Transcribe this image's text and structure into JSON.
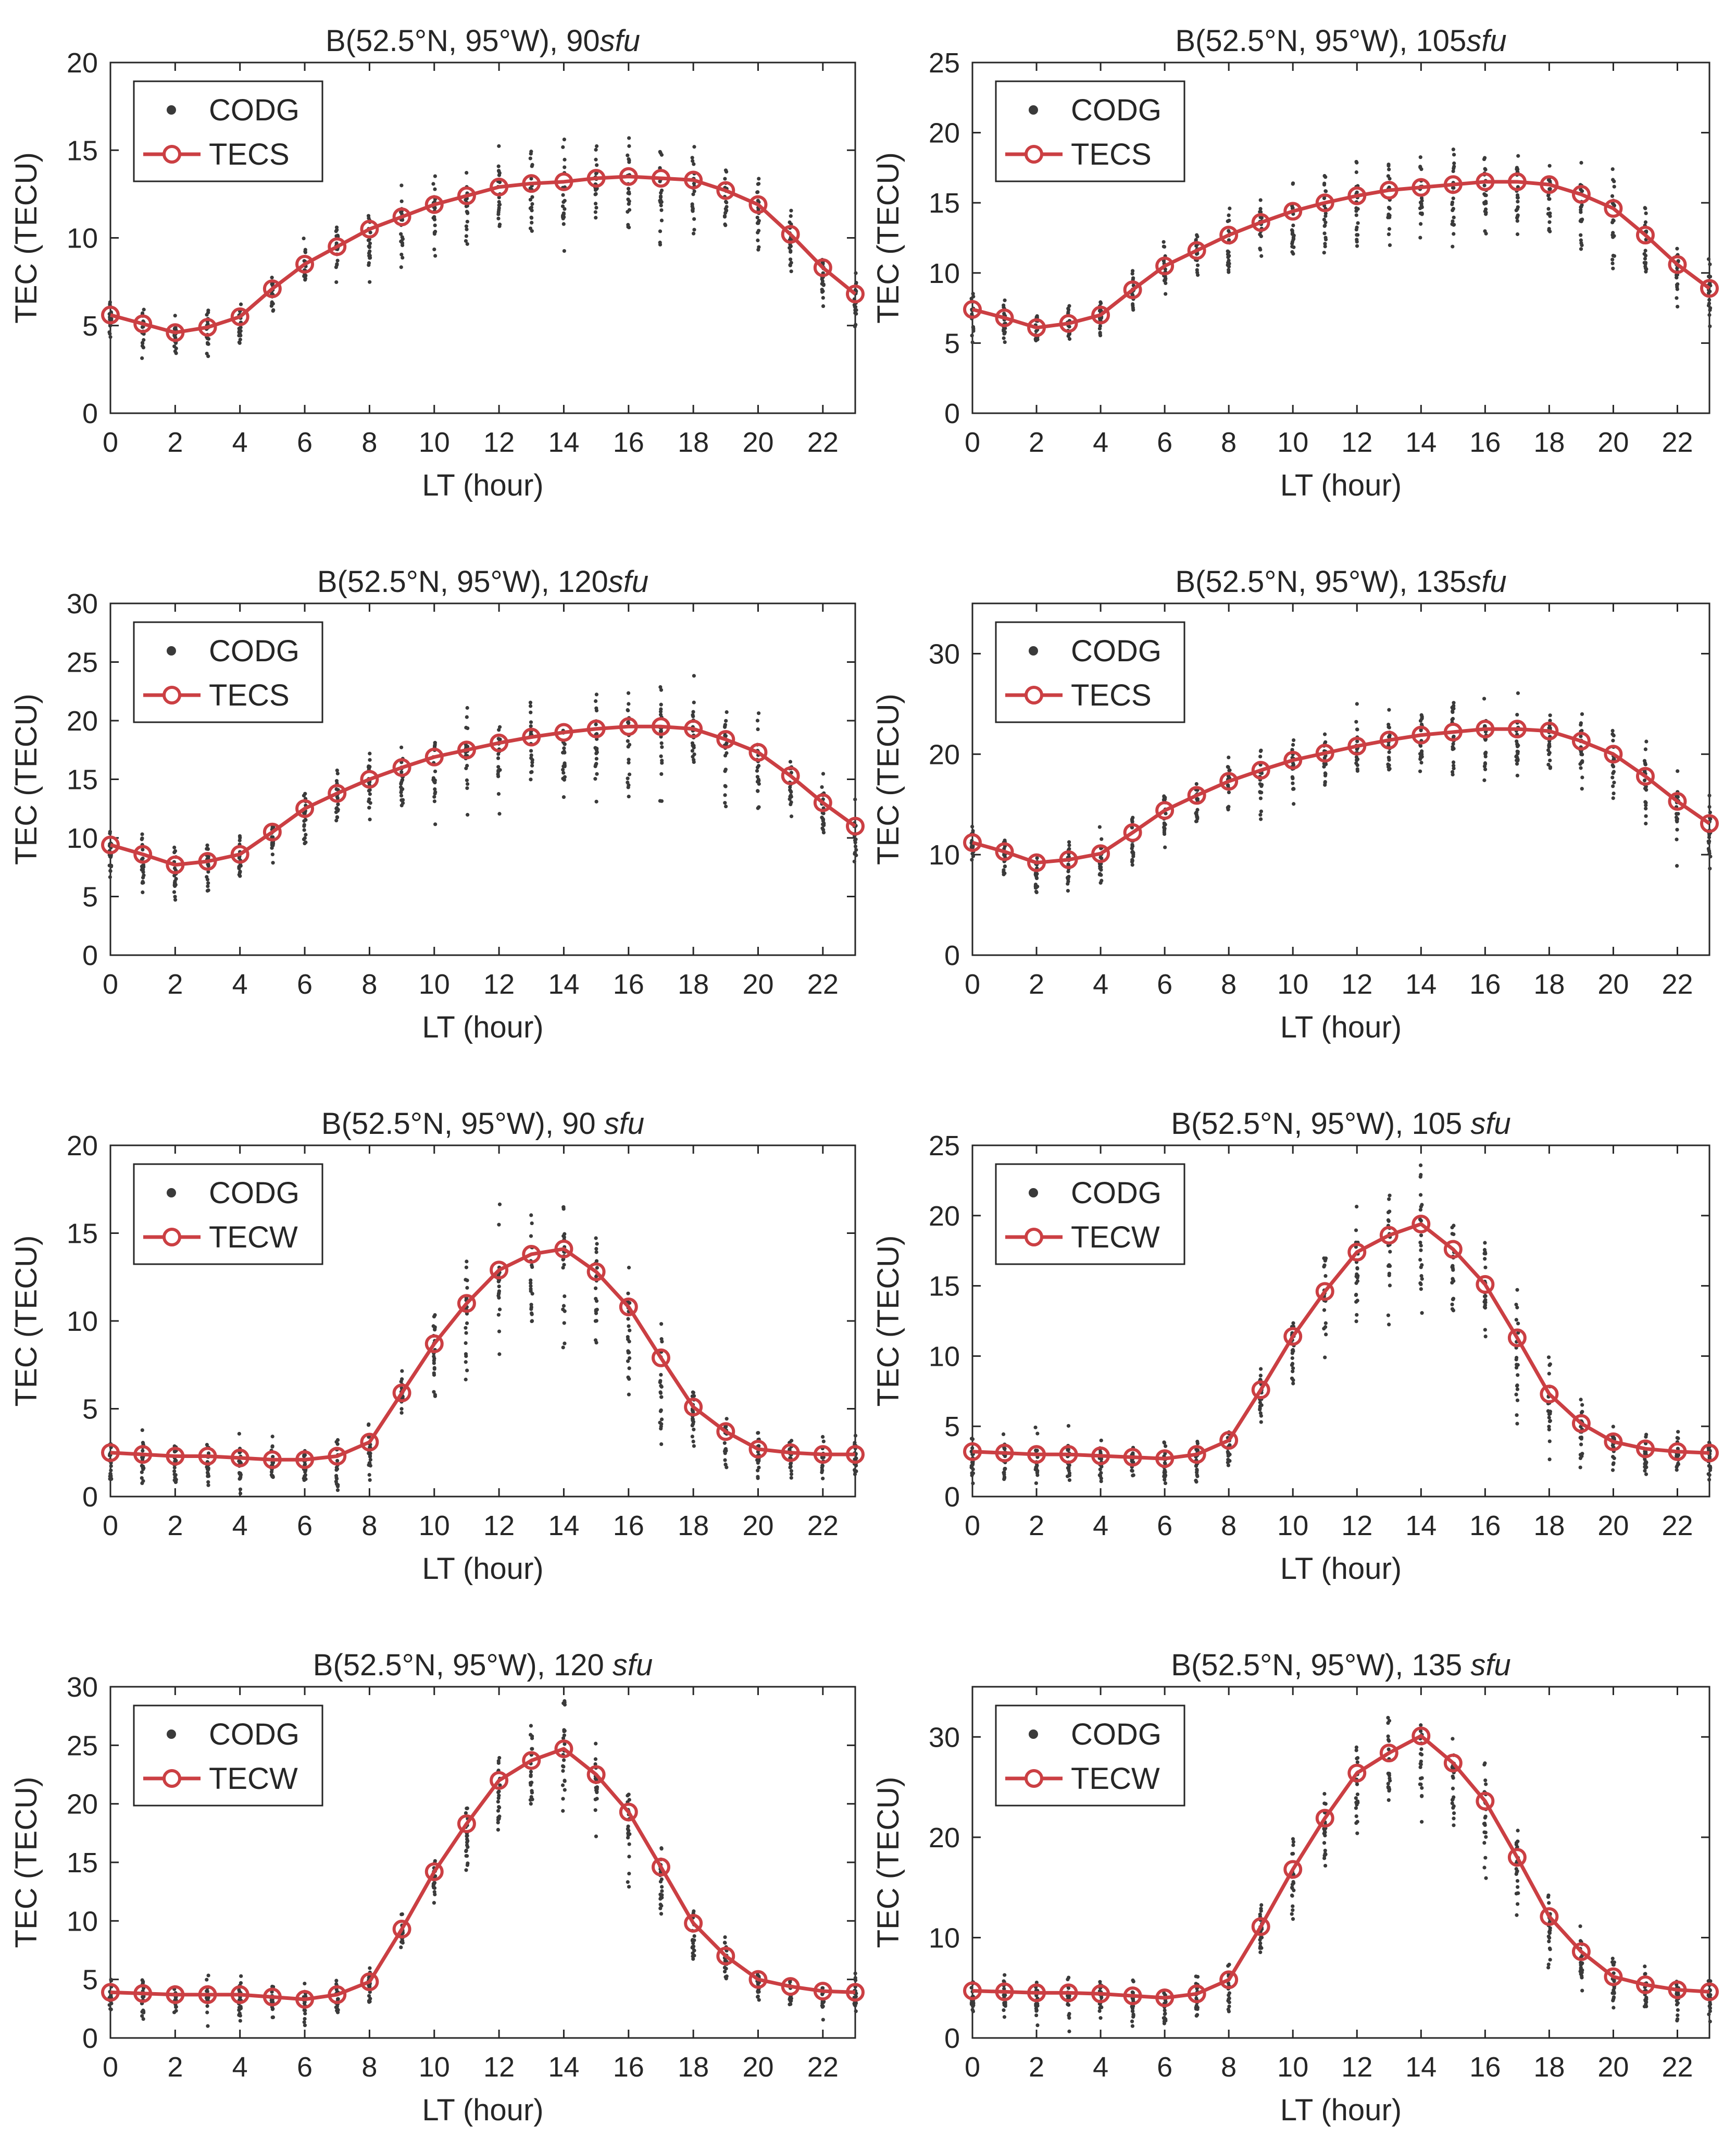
{
  "colors": {
    "model": "#cb3f43",
    "observed": "#3a3a3a",
    "axis": "#262626",
    "background": "#ffffff"
  },
  "chart_data": [
    {
      "type": "line",
      "title_prefix": "B(52.5°N, 95°W), ",
      "title_flux": "90",
      "title_unit": "sfu",
      "xlabel": "LT (hour)",
      "ylabel": "TEC (TECU)",
      "xlim": [
        0,
        23
      ],
      "ylim": [
        0,
        20
      ],
      "xticks": [
        "0",
        "2",
        "4",
        "6",
        "8",
        "10",
        "12",
        "14",
        "16",
        "18",
        "20",
        "22"
      ],
      "yticks": [
        "0",
        "5",
        "10",
        "15",
        "20"
      ],
      "legend": [
        "CODG",
        "TECS"
      ],
      "legend_position": "top-left",
      "grid": false,
      "x": [
        0,
        1,
        2,
        3,
        4,
        5,
        6,
        7,
        8,
        9,
        10,
        11,
        12,
        13,
        14,
        15,
        16,
        17,
        18,
        19,
        20,
        21,
        22,
        23
      ],
      "series": [
        {
          "name": "TECS",
          "values": [
            5.6,
            5.1,
            4.6,
            4.9,
            5.5,
            7.1,
            8.5,
            9.5,
            10.5,
            11.2,
            11.9,
            12.4,
            12.9,
            13.1,
            13.2,
            13.4,
            13.5,
            13.4,
            13.3,
            12.7,
            11.9,
            10.2,
            8.3,
            6.8
          ]
        },
        {
          "name": "CODG",
          "kind": "scatter",
          "spread": [
            1.4,
            1.4,
            1.3,
            1.3,
            1.3,
            1.0,
            1.3,
            1.5,
            1.9,
            2.0,
            2.1,
            2.1,
            2.2,
            2.4,
            2.6,
            2.7,
            2.9,
            2.9,
            2.4,
            2.4,
            2.2,
            1.8,
            1.7,
            1.6
          ]
        }
      ]
    },
    {
      "type": "line",
      "title_prefix": "B(52.5°N, 95°W), ",
      "title_flux": "105",
      "title_unit": "sfu",
      "xlabel": "LT (hour)",
      "ylabel": "TEC (TECU)",
      "xlim": [
        0,
        23
      ],
      "ylim": [
        0,
        25
      ],
      "xticks": [
        "0",
        "2",
        "4",
        "6",
        "8",
        "10",
        "12",
        "14",
        "16",
        "18",
        "20",
        "22"
      ],
      "yticks": [
        "0",
        "5",
        "10",
        "15",
        "20",
        "25"
      ],
      "legend": [
        "CODG",
        "TECS"
      ],
      "legend_position": "top-left",
      "grid": false,
      "x": [
        0,
        1,
        2,
        3,
        4,
        5,
        6,
        7,
        8,
        9,
        10,
        11,
        12,
        13,
        14,
        15,
        16,
        17,
        18,
        19,
        20,
        21,
        22,
        23
      ],
      "series": [
        {
          "name": "TECS",
          "values": [
            7.4,
            6.8,
            6.1,
            6.4,
            7.0,
            8.8,
            10.5,
            11.6,
            12.7,
            13.6,
            14.4,
            15.0,
            15.5,
            15.9,
            16.1,
            16.3,
            16.5,
            16.5,
            16.3,
            15.6,
            14.6,
            12.7,
            10.6,
            8.9
          ]
        },
        {
          "name": "CODG",
          "kind": "scatter",
          "spread": [
            1.6,
            1.5,
            1.5,
            1.5,
            1.5,
            1.5,
            1.7,
            2.0,
            2.4,
            2.6,
            2.8,
            2.9,
            3.1,
            3.3,
            3.3,
            3.3,
            3.2,
            3.2,
            2.9,
            3.0,
            2.9,
            2.6,
            2.5,
            2.1
          ]
        }
      ]
    },
    {
      "type": "line",
      "title_prefix": "B(52.5°N, 95°W), ",
      "title_flux": "120",
      "title_unit": "sfu",
      "xlabel": "LT (hour)",
      "ylabel": "TEC (TECU)",
      "xlim": [
        0,
        23
      ],
      "ylim": [
        0,
        30
      ],
      "xticks": [
        "0",
        "2",
        "4",
        "6",
        "8",
        "10",
        "12",
        "14",
        "16",
        "18",
        "20",
        "22"
      ],
      "yticks": [
        "0",
        "5",
        "10",
        "15",
        "20",
        "25",
        "30"
      ],
      "legend": [
        "CODG",
        "TECS"
      ],
      "legend_position": "top-left",
      "grid": false,
      "x": [
        0,
        1,
        2,
        3,
        4,
        5,
        6,
        7,
        8,
        9,
        10,
        11,
        12,
        13,
        14,
        15,
        16,
        17,
        18,
        19,
        20,
        21,
        22,
        23
      ],
      "series": [
        {
          "name": "TECS",
          "values": [
            9.4,
            8.6,
            7.7,
            8.0,
            8.6,
            10.5,
            12.5,
            13.8,
            15.0,
            16.0,
            16.9,
            17.5,
            18.1,
            18.6,
            19.0,
            19.3,
            19.5,
            19.5,
            19.3,
            18.4,
            17.3,
            15.3,
            13.0,
            11.0
          ]
        },
        {
          "name": "CODG",
          "kind": "scatter",
          "spread": [
            2.2,
            2.6,
            3.0,
            2.6,
            2.4,
            2.0,
            2.6,
            2.8,
            3.0,
            3.2,
            3.8,
            3.8,
            3.8,
            4.0,
            4.4,
            4.4,
            4.6,
            4.6,
            4.0,
            4.0,
            3.8,
            3.2,
            3.2,
            2.7
          ]
        }
      ]
    },
    {
      "type": "line",
      "title_prefix": "B(52.5°N, 95°W), ",
      "title_flux": "135",
      "title_unit": "sfu",
      "xlabel": "LT (hour)",
      "ylabel": "TEC (TECU)",
      "xlim": [
        0,
        23
      ],
      "ylim": [
        0,
        35
      ],
      "xticks": [
        "0",
        "2",
        "4",
        "6",
        "8",
        "10",
        "12",
        "14",
        "16",
        "18",
        "20",
        "22"
      ],
      "yticks": [
        "0",
        "10",
        "20",
        "30"
      ],
      "legend": [
        "CODG",
        "TECS"
      ],
      "legend_position": "top-left",
      "grid": false,
      "x": [
        0,
        1,
        2,
        3,
        4,
        5,
        6,
        7,
        8,
        9,
        10,
        11,
        12,
        13,
        14,
        15,
        16,
        17,
        18,
        19,
        20,
        21,
        22,
        23
      ],
      "series": [
        {
          "name": "TECS",
          "values": [
            11.2,
            10.3,
            9.2,
            9.5,
            10.1,
            12.2,
            14.4,
            15.9,
            17.3,
            18.4,
            19.4,
            20.1,
            20.8,
            21.4,
            21.9,
            22.2,
            22.5,
            22.5,
            22.3,
            21.3,
            20.0,
            17.8,
            15.3,
            13.1
          ]
        },
        {
          "name": "CODG",
          "kind": "scatter",
          "spread": [
            1.8,
            2.0,
            2.4,
            2.5,
            2.6,
            2.8,
            2.8,
            2.8,
            2.8,
            3.0,
            3.5,
            3.6,
            3.6,
            3.8,
            4.2,
            4.0,
            3.8,
            3.6,
            4.0,
            4.2,
            4.2,
            3.8,
            4.0,
            3.0
          ]
        }
      ]
    },
    {
      "type": "line",
      "title_prefix": "B(52.5°N, 95°W), ",
      "title_flux": "90 ",
      "title_unit": "sfu",
      "xlabel": "LT (hour)",
      "ylabel": "TEC (TECU)",
      "xlim": [
        0,
        23
      ],
      "ylim": [
        0,
        20
      ],
      "xticks": [
        "0",
        "2",
        "4",
        "6",
        "8",
        "10",
        "12",
        "14",
        "16",
        "18",
        "20",
        "22"
      ],
      "yticks": [
        "0",
        "5",
        "10",
        "15",
        "20"
      ],
      "legend": [
        "CODG",
        "TECW"
      ],
      "legend_position": "top-left",
      "grid": false,
      "x": [
        0,
        1,
        2,
        3,
        4,
        5,
        6,
        7,
        8,
        9,
        10,
        11,
        12,
        13,
        14,
        15,
        16,
        17,
        18,
        19,
        20,
        21,
        22,
        23
      ],
      "series": [
        {
          "name": "TECW",
          "values": [
            2.5,
            2.4,
            2.3,
            2.3,
            2.2,
            2.1,
            2.1,
            2.3,
            3.1,
            5.9,
            8.7,
            11.0,
            12.9,
            13.8,
            14.1,
            12.8,
            10.8,
            7.9,
            5.1,
            3.7,
            2.7,
            2.5,
            2.4,
            2.4
          ]
        },
        {
          "name": "CODG",
          "kind": "scatter",
          "spread": [
            1.3,
            1.4,
            1.5,
            1.5,
            1.5,
            1.4,
            1.5,
            1.6,
            1.4,
            1.6,
            2.8,
            3.4,
            3.8,
            4.4,
            4.8,
            4.6,
            4.4,
            3.6,
            2.2,
            1.6,
            1.4,
            1.3,
            1.3,
            1.2
          ]
        }
      ]
    },
    {
      "type": "line",
      "title_prefix": "B(52.5°N, 95°W), ",
      "title_flux": "105 ",
      "title_unit": "sfu",
      "xlabel": "LT (hour)",
      "ylabel": "TEC (TECU)",
      "xlim": [
        0,
        23
      ],
      "ylim": [
        0,
        25
      ],
      "xticks": [
        "0",
        "2",
        "4",
        "6",
        "8",
        "10",
        "12",
        "14",
        "16",
        "18",
        "20",
        "22"
      ],
      "yticks": [
        "0",
        "5",
        "10",
        "15",
        "20",
        "25"
      ],
      "legend": [
        "CODG",
        "TECW"
      ],
      "legend_position": "top-left",
      "grid": false,
      "x": [
        0,
        1,
        2,
        3,
        4,
        5,
        6,
        7,
        8,
        9,
        10,
        11,
        12,
        13,
        14,
        15,
        16,
        17,
        18,
        19,
        20,
        21,
        22,
        23
      ],
      "series": [
        {
          "name": "TECW",
          "values": [
            3.2,
            3.1,
            3.0,
            3.0,
            2.9,
            2.8,
            2.7,
            3.0,
            4.0,
            7.6,
            11.4,
            14.6,
            17.4,
            18.6,
            19.4,
            17.6,
            15.1,
            11.3,
            7.3,
            5.2,
            3.9,
            3.4,
            3.2,
            3.1
          ]
        },
        {
          "name": "CODG",
          "kind": "scatter",
          "spread": [
            1.6,
            1.7,
            1.8,
            1.8,
            1.7,
            1.6,
            1.6,
            1.7,
            1.6,
            1.8,
            3.2,
            4.0,
            4.6,
            5.0,
            5.2,
            5.0,
            5.0,
            4.4,
            3.0,
            2.0,
            1.7,
            1.6,
            1.6,
            1.5
          ]
        }
      ]
    },
    {
      "type": "line",
      "title_prefix": "B(52.5°N, 95°W), ",
      "title_flux": "120 ",
      "title_unit": "sfu",
      "xlabel": "LT (hour)",
      "ylabel": "TEC (TECU)",
      "xlim": [
        0,
        23
      ],
      "ylim": [
        0,
        30
      ],
      "xticks": [
        "0",
        "2",
        "4",
        "6",
        "8",
        "10",
        "12",
        "14",
        "16",
        "18",
        "20",
        "22"
      ],
      "yticks": [
        "0",
        "5",
        "10",
        "15",
        "20",
        "25",
        "30"
      ],
      "legend": [
        "CODG",
        "TECW"
      ],
      "legend_position": "top-left",
      "grid": false,
      "x": [
        0,
        1,
        2,
        3,
        4,
        5,
        6,
        7,
        8,
        9,
        10,
        11,
        12,
        13,
        14,
        15,
        16,
        17,
        18,
        19,
        20,
        21,
        22,
        23
      ],
      "series": [
        {
          "name": "TECW",
          "values": [
            3.9,
            3.8,
            3.7,
            3.7,
            3.7,
            3.5,
            3.3,
            3.7,
            4.8,
            9.3,
            14.2,
            18.3,
            22.0,
            23.7,
            24.7,
            22.5,
            19.3,
            14.6,
            9.8,
            7.0,
            5.0,
            4.4,
            4.0,
            3.9
          ]
        },
        {
          "name": "CODG",
          "kind": "scatter",
          "spread": [
            1.5,
            1.6,
            1.6,
            1.6,
            1.6,
            1.5,
            1.5,
            1.5,
            1.5,
            1.6,
            2.4,
            3.0,
            3.6,
            4.0,
            4.6,
            4.4,
            4.2,
            3.6,
            2.6,
            2.0,
            1.6,
            1.6,
            1.6,
            1.5
          ]
        }
      ]
    },
    {
      "type": "line",
      "title_prefix": "B(52.5°N, 95°W), ",
      "title_flux": "135 ",
      "title_unit": "sfu",
      "xlabel": "LT (hour)",
      "ylabel": "TEC (TECU)",
      "xlim": [
        0,
        23
      ],
      "ylim": [
        0,
        35
      ],
      "xticks": [
        "0",
        "2",
        "4",
        "6",
        "8",
        "10",
        "12",
        "14",
        "16",
        "18",
        "20",
        "22"
      ],
      "yticks": [
        "0",
        "10",
        "20",
        "30"
      ],
      "legend": [
        "CODG",
        "TECW"
      ],
      "legend_position": "top-left",
      "grid": false,
      "x": [
        0,
        1,
        2,
        3,
        4,
        5,
        6,
        7,
        8,
        9,
        10,
        11,
        12,
        13,
        14,
        15,
        16,
        17,
        18,
        19,
        20,
        21,
        22,
        23
      ],
      "series": [
        {
          "name": "TECW",
          "values": [
            4.7,
            4.6,
            4.5,
            4.5,
            4.4,
            4.2,
            4.0,
            4.4,
            5.8,
            11.1,
            16.8,
            21.9,
            26.4,
            28.4,
            30.1,
            27.4,
            23.6,
            18.0,
            12.1,
            8.6,
            6.1,
            5.3,
            4.8,
            4.6
          ]
        },
        {
          "name": "CODG",
          "kind": "scatter",
          "spread": [
            2.2,
            2.3,
            2.4,
            2.4,
            2.3,
            2.2,
            2.2,
            2.4,
            2.4,
            2.6,
            3.6,
            4.4,
            5.0,
            5.6,
            6.0,
            5.8,
            5.6,
            4.8,
            3.6,
            2.8,
            2.4,
            2.2,
            2.2,
            2.1
          ]
        }
      ]
    }
  ]
}
